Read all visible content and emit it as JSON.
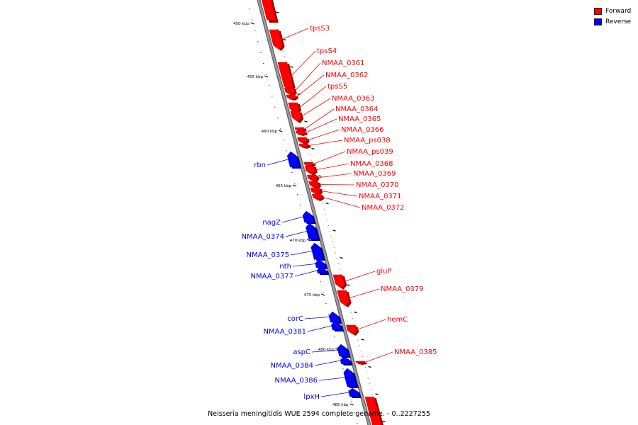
{
  "legend": [
    {
      "label": "Forward",
      "color": "#ff0000"
    },
    {
      "label": "Reverse",
      "color": "#0000ff"
    }
  ],
  "colors": {
    "forward": "#ff0000",
    "reverse": "#0000ff",
    "backbone": "#999999"
  },
  "caption": "Neisseria meningitidis WUE 2594 complete genome. - 0..2227255",
  "scale": {
    "unit": "kbp",
    "labels": [
      "450 kbp",
      "455 kbp",
      "460 kbp",
      "465 kbp",
      "470 kbp",
      "475 kbp",
      "480 kbp",
      "485 kbp"
    ]
  },
  "genes": [
    {
      "name": "tpsS3",
      "strand": "forward"
    },
    {
      "name": "tpsS4",
      "strand": "forward"
    },
    {
      "name": "NMAA_0361",
      "strand": "forward"
    },
    {
      "name": "NMAA_0362",
      "strand": "forward"
    },
    {
      "name": "tpsS5",
      "strand": "forward"
    },
    {
      "name": "NMAA_0363",
      "strand": "forward"
    },
    {
      "name": "NMAA_0364",
      "strand": "forward"
    },
    {
      "name": "NMAA_0365",
      "strand": "forward"
    },
    {
      "name": "NMAA_0366",
      "strand": "forward"
    },
    {
      "name": "NMAA_ps038",
      "strand": "forward"
    },
    {
      "name": "NMAA_ps039",
      "strand": "forward"
    },
    {
      "name": "rbn",
      "strand": "reverse"
    },
    {
      "name": "NMAA_0368",
      "strand": "forward"
    },
    {
      "name": "NMAA_0369",
      "strand": "forward"
    },
    {
      "name": "NMAA_0370",
      "strand": "forward"
    },
    {
      "name": "NMAA_0371",
      "strand": "forward"
    },
    {
      "name": "NMAA_0372",
      "strand": "forward"
    },
    {
      "name": "nagZ",
      "strand": "reverse"
    },
    {
      "name": "NMAA_0374",
      "strand": "reverse"
    },
    {
      "name": "NMAA_0375",
      "strand": "reverse"
    },
    {
      "name": "nth",
      "strand": "reverse"
    },
    {
      "name": "NMAA_0377",
      "strand": "reverse"
    },
    {
      "name": "gluP",
      "strand": "forward"
    },
    {
      "name": "NMAA_0379",
      "strand": "forward"
    },
    {
      "name": "corC",
      "strand": "reverse"
    },
    {
      "name": "hemC",
      "strand": "forward"
    },
    {
      "name": "NMAA_0381",
      "strand": "reverse"
    },
    {
      "name": "aspC",
      "strand": "reverse"
    },
    {
      "name": "NMAA_0385",
      "strand": "forward"
    },
    {
      "name": "NMAA_0384",
      "strand": "reverse"
    },
    {
      "name": "NMAA_0386",
      "strand": "reverse"
    },
    {
      "name": "lpxH",
      "strand": "reverse"
    }
  ]
}
